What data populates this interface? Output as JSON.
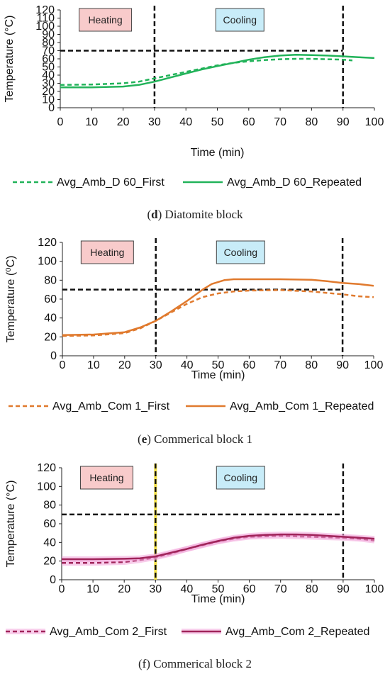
{
  "figures": [
    {
      "caption_letter": "d",
      "caption_text": " Diatomite block",
      "chart_data": {
        "type": "line",
        "xlabel": "Time (min)",
        "ylabel": "Temperature (°C)",
        "xlim": [
          0,
          100
        ],
        "ylim": [
          0,
          120
        ],
        "xticks": [
          "0",
          "10",
          "20",
          "30",
          "40",
          "50",
          "60",
          "70",
          "80",
          "90",
          "100"
        ],
        "yticks": [
          "0",
          "10",
          "20",
          "30",
          "40",
          "50",
          "60",
          "70",
          "80",
          "90",
          "100",
          "110",
          "120"
        ],
        "ytick_step": 10,
        "heating_label": "Heating",
        "cooling_label": "Cooling",
        "phase_lines_x": [
          30,
          90
        ],
        "threshold": {
          "y": 70,
          "x_start": 0,
          "x_end": 90
        },
        "legend_position": "bottom",
        "series": [
          {
            "name": "Avg_Amb_D 60_First",
            "style": "dashed",
            "color": "#22b35a",
            "x": [
              0,
              10,
              20,
              25,
              30,
              35,
              40,
              45,
              50,
              55,
              60,
              65,
              70,
              75,
              80,
              85,
              90,
              93
            ],
            "y": [
              28,
              28.5,
              30,
              32,
              36,
              40,
              44,
              48,
              52,
              55,
              57,
              58.5,
              59.5,
              60,
              60,
              59.5,
              59,
              58
            ]
          },
          {
            "name": "Avg_Amb_D 60_Repeated",
            "style": "solid",
            "color": "#22b35a",
            "x": [
              0,
              10,
              20,
              25,
              30,
              35,
              40,
              45,
              50,
              55,
              60,
              65,
              70,
              75,
              80,
              85,
              90,
              95,
              100
            ],
            "y": [
              25,
              25,
              26,
              28,
              32,
              37,
              42,
              47,
              51,
              55,
              59,
              62,
              64,
              65,
              64.5,
              64,
              63,
              62,
              61
            ]
          }
        ]
      }
    },
    {
      "caption_letter": "e",
      "caption_text": " Commerical block 1",
      "chart_data": {
        "type": "line",
        "xlabel": "Time (min)",
        "ylabel": "Temperature (⁰C)",
        "xlim": [
          0,
          100
        ],
        "ylim": [
          0,
          120
        ],
        "xticks": [
          "0",
          "10",
          "20",
          "30",
          "40",
          "50",
          "60",
          "70",
          "80",
          "90",
          "100"
        ],
        "yticks": [
          "0",
          "20",
          "40",
          "60",
          "80",
          "100",
          "120"
        ],
        "ytick_step": 20,
        "heating_label": "Heating",
        "cooling_label": "Cooling",
        "phase_lines_x": [
          30,
          90
        ],
        "threshold": {
          "y": 70,
          "x_start": 0,
          "x_end": 90
        },
        "legend_position": "bottom",
        "series": [
          {
            "name": "Avg_Amb_Com 1_First",
            "style": "dashed",
            "color": "#e07a2e",
            "x": [
              0,
              10,
              20,
              25,
              30,
              35,
              40,
              45,
              50,
              55,
              60,
              70,
              80,
              90,
              95,
              100
            ],
            "y": [
              21,
              21.5,
              24,
              29,
              37,
              46,
              55,
              62,
              66,
              68,
              69,
              69.5,
              68,
              65,
              63,
              62
            ]
          },
          {
            "name": "Avg_Amb_Com 1_Repeated",
            "style": "solid",
            "color": "#e07a2e",
            "x": [
              0,
              10,
              20,
              25,
              30,
              35,
              40,
              45,
              48,
              52,
              55,
              60,
              70,
              80,
              85,
              90,
              95,
              100
            ],
            "y": [
              22,
              22.5,
              25,
              30,
              37,
              47,
              58,
              70,
              76,
              80,
              81,
              81,
              81,
              80.5,
              79,
              77,
              76,
              74
            ]
          }
        ]
      }
    },
    {
      "caption_letter": "",
      "caption_text": "(f) Commerical block 2",
      "chart_data": {
        "type": "line",
        "xlabel": "Time (min)",
        "ylabel": "Temperature (°C)",
        "xlim": [
          0,
          100
        ],
        "ylim": [
          0,
          120
        ],
        "xticks": [
          "0",
          "10",
          "20",
          "30",
          "40",
          "50",
          "60",
          "70",
          "80",
          "90",
          "100"
        ],
        "yticks": [
          "0",
          "20",
          "40",
          "60",
          "80",
          "100",
          "120"
        ],
        "ytick_step": 20,
        "heating_label": "Heating",
        "cooling_label": "Cooling",
        "phase_lines_x": [
          30,
          90
        ],
        "threshold": {
          "y": 70,
          "x_start": 0,
          "x_end": 90
        },
        "legend_position": "bottom",
        "series": [
          {
            "name": "Avg_Amb_Com 2_First",
            "style": "dashed",
            "color": "#a0245a",
            "x": [
              0,
              10,
              20,
              25,
              30,
              35,
              40,
              45,
              50,
              55,
              60,
              65,
              70,
              75,
              80,
              85,
              90,
              95,
              100
            ],
            "y": [
              18,
              18,
              19,
              21,
              24,
              28,
              33,
              37,
              41,
              44,
              46,
              46.5,
              47,
              46.5,
              46,
              45.5,
              45,
              44,
              42
            ]
          },
          {
            "name": "Avg_Amb_Com 2_Repeated",
            "style": "solid",
            "color": "#a0245a",
            "x": [
              0,
              10,
              20,
              25,
              30,
              35,
              40,
              45,
              50,
              55,
              60,
              65,
              70,
              75,
              80,
              85,
              90,
              95,
              100
            ],
            "y": [
              22,
              22,
              22.5,
              23,
              25,
              29,
              33,
              37.5,
              41.5,
              45,
              47,
              48,
              48.5,
              48.5,
              48,
              47,
              46,
              45,
              44
            ]
          }
        ]
      }
    }
  ]
}
